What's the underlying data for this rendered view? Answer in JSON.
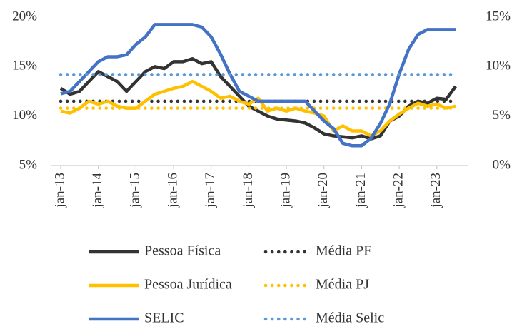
{
  "chart_data": {
    "type": "line",
    "categories": [
      "jan-13",
      null,
      null,
      null,
      "jan-14",
      null,
      null,
      null,
      "jan-15",
      null,
      null,
      null,
      "jan-16",
      null,
      null,
      null,
      "jan-17",
      null,
      null,
      null,
      "jan-18",
      null,
      null,
      null,
      "jan-19",
      null,
      null,
      null,
      "jan-20",
      null,
      null,
      null,
      "jan-21",
      null,
      null,
      null,
      "jan-22",
      null,
      null,
      null,
      "jan-23",
      null,
      null
    ],
    "ylim": [
      5,
      20
    ],
    "yticks": [
      {
        "value": 5,
        "label": "5%"
      },
      {
        "value": 10,
        "label": "10%"
      },
      {
        "value": 15,
        "label": "15%"
      },
      {
        "value": 20,
        "label": "20%"
      }
    ],
    "y2lim": [
      0,
      15
    ],
    "y2ticks": [
      {
        "value": 0,
        "label": "0%"
      },
      {
        "value": 5,
        "label": "5%"
      },
      {
        "value": 10,
        "label": "10%"
      },
      {
        "value": 15,
        "label": "15%"
      }
    ],
    "grid": false,
    "series": [
      {
        "name": "Pessoa Física",
        "color": "#333333",
        "style": "solid",
        "values": [
          12.8,
          12.2,
          12.5,
          13.5,
          14.5,
          14,
          13.5,
          12.5,
          13.5,
          14.5,
          15,
          14.8,
          15.5,
          15.5,
          15.8,
          15.3,
          15.5,
          14,
          13,
          12,
          11,
          10.5,
          10,
          9.7,
          9.6,
          9.5,
          9.3,
          8.8,
          8.2,
          8,
          7.9,
          7.8,
          8,
          7.7,
          8,
          9.5,
          10,
          11,
          11.5,
          11.3,
          11.8,
          11.7,
          13
        ]
      },
      {
        "name": "Média PF",
        "color": "#333333",
        "style": "dotted",
        "value": 11.5
      },
      {
        "name": "Pessoa Jurídica",
        "color": "#ffc000",
        "style": "solid",
        "values": [
          10.5,
          10.3,
          10.8,
          11.5,
          11.2,
          11.5,
          11,
          10.8,
          10.8,
          11.5,
          12.2,
          12.5,
          12.8,
          13,
          13.5,
          13,
          12.5,
          11.8,
          12,
          11.5,
          11.2,
          11.8,
          10.5,
          10.8,
          10.5,
          10.8,
          10.5,
          10.3,
          10,
          8.5,
          9,
          8.5,
          8.5,
          8,
          8.5,
          9.5,
          10.2,
          10.8,
          11.3,
          11,
          11.2,
          10.8,
          11
        ]
      },
      {
        "name": "Média PJ",
        "color": "#ffc000",
        "style": "dotted",
        "value": 10.8
      },
      {
        "name": "SELIC",
        "color": "#4472c4",
        "style": "solid",
        "axis": "y2",
        "values": [
          7.25,
          7.5,
          8.5,
          9.5,
          10.5,
          11,
          11,
          11.2,
          12.25,
          13,
          14.25,
          14.25,
          14.25,
          14.25,
          14.25,
          14,
          13,
          11.25,
          9.25,
          7.5,
          7,
          6.5,
          6.5,
          6.5,
          6.5,
          6.5,
          6.5,
          5.5,
          4.5,
          3.75,
          2.25,
          2,
          2,
          2.75,
          4.25,
          6.25,
          9.25,
          11.75,
          13.25,
          13.75,
          13.75,
          13.75,
          13.75
        ]
      },
      {
        "name": "Média Selic",
        "color": "#5b9bd5",
        "style": "dotted",
        "axis": "y2",
        "value": 9.2
      }
    ]
  }
}
